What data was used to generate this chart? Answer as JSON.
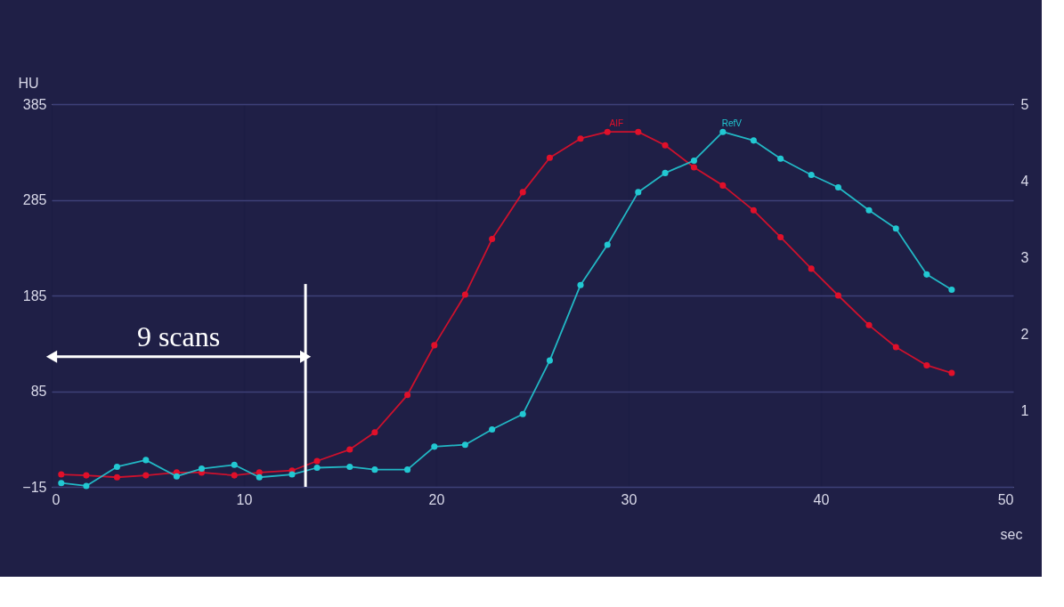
{
  "chart_data": {
    "type": "line",
    "xlabel": "sec",
    "ylabel": "HU",
    "x": [
      0.5,
      1.8,
      3.4,
      4.9,
      6.5,
      7.8,
      9.5,
      10.8,
      12.5,
      13.8,
      15.5,
      16.8,
      18.5,
      19.9,
      21.5,
      22.9,
      24.5,
      25.9,
      27.5,
      28.9,
      30.5,
      31.9,
      33.4,
      34.9,
      36.5,
      37.9,
      39.5,
      40.9,
      42.5,
      43.9,
      45.5,
      46.8
    ],
    "series": [
      {
        "name": "AIF",
        "color": "#e0102a",
        "values": [
          -2,
          -3,
          -5,
          -3,
          0,
          0,
          -3,
          0,
          2,
          12,
          24,
          42,
          81,
          133,
          186,
          244,
          293,
          329,
          349,
          356,
          356,
          342,
          319,
          300,
          274,
          246,
          213,
          185,
          154,
          131,
          112,
          104
        ]
      },
      {
        "name": "RefV",
        "color": "#22c8d2",
        "values": [
          -11,
          -14,
          6,
          13,
          -4,
          4,
          8,
          -5,
          -2,
          5,
          6,
          3,
          3,
          27,
          29,
          45,
          61,
          117,
          196,
          238,
          293,
          313,
          326,
          356,
          347,
          328,
          311,
          298,
          274,
          255,
          207,
          191
        ]
      }
    ],
    "xlim": [
      0,
      50
    ],
    "xticks": [
      0,
      10,
      20,
      30,
      40,
      50
    ],
    "ylim": [
      -15,
      385
    ],
    "yticks": [
      -15,
      85,
      185,
      285,
      385
    ],
    "y2lim": [
      0,
      5
    ],
    "y2ticks": [
      1,
      2,
      3,
      4,
      5
    ],
    "ref_lines": [
      {
        "axis": "x",
        "value": 13.2,
        "label": null,
        "color": "#ffffff"
      }
    ],
    "annotations": [
      "9 scans"
    ],
    "grid": true,
    "legend": false,
    "marker": "circle",
    "line_style": "solid"
  }
}
